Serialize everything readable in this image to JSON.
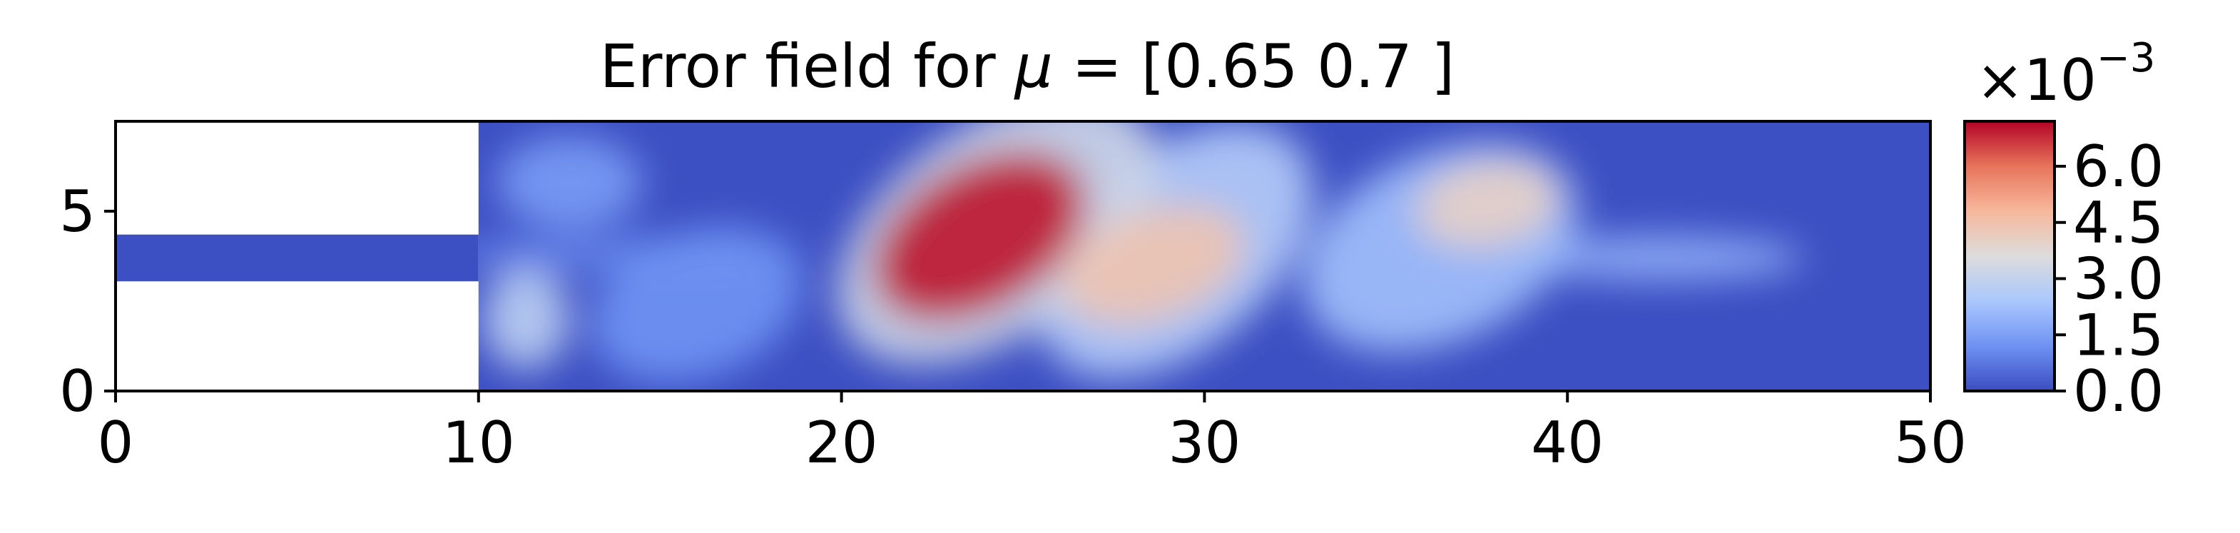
{
  "chart_data": {
    "type": "heatmap",
    "title_prefix": "Error field for ",
    "title_mu": "μ",
    "title_suffix": " = [0.65 0.7 ]",
    "xlabel": "",
    "ylabel": "",
    "xlim": [
      0,
      50
    ],
    "ylim": [
      0,
      7.5
    ],
    "x_ticks": [
      0,
      10,
      20,
      30,
      40,
      50
    ],
    "x_tick_labels": [
      "0",
      "10",
      "20",
      "30",
      "40",
      "50"
    ],
    "y_ticks": [
      0,
      5
    ],
    "y_tick_labels": [
      "0",
      "5"
    ],
    "grid": false,
    "colormap": "coolwarm",
    "colormap_colors": [
      "#3b4cc0",
      "#6f92f3",
      "#aac7fd",
      "#dddcdc",
      "#f7b89c",
      "#e7745b",
      "#b40426"
    ],
    "background_color": "#3d50c3",
    "colorbar": {
      "min": 0.0,
      "max": 0.0072,
      "ticks": [
        0.0,
        1.5,
        3.0,
        4.5,
        6.0
      ],
      "tick_labels": [
        "0.0",
        "1.5",
        "3.0",
        "4.5",
        "6.0"
      ],
      "multiplier_base": "×10",
      "multiplier_exp": "−3"
    },
    "domain": {
      "inlet_channel": {
        "x": [
          0,
          10
        ],
        "y": [
          3.05,
          4.35
        ]
      },
      "main_chamber": {
        "x": [
          10,
          50
        ],
        "y": [
          0,
          7.5
        ]
      }
    },
    "error_blobs": [
      {
        "x": 23.8,
        "y": 4.3,
        "rx": 3.2,
        "ry": 2.0,
        "rotate": -30,
        "value": 7.0
      },
      {
        "x": 24.3,
        "y": 4.5,
        "rx": 5.0,
        "ry": 2.9,
        "rotate": -35,
        "value": 3.2
      },
      {
        "x": 28.6,
        "y": 3.5,
        "rx": 2.6,
        "ry": 1.5,
        "rotate": -20,
        "value": 4.4
      },
      {
        "x": 29.2,
        "y": 3.9,
        "rx": 4.4,
        "ry": 2.7,
        "rotate": -40,
        "value": 2.6
      },
      {
        "x": 37.8,
        "y": 5.2,
        "rx": 2.0,
        "ry": 1.2,
        "rotate": -10,
        "value": 4.0
      },
      {
        "x": 36.5,
        "y": 4.0,
        "rx": 4.0,
        "ry": 2.6,
        "rotate": -25,
        "value": 2.2
      },
      {
        "x": 11.3,
        "y": 2.0,
        "rx": 1.2,
        "ry": 1.4,
        "rotate": 0,
        "value": 2.8
      },
      {
        "x": 42.5,
        "y": 3.7,
        "rx": 4.0,
        "ry": 0.6,
        "rotate": 0,
        "value": 1.9
      },
      {
        "x": 12.5,
        "y": 5.8,
        "rx": 2.0,
        "ry": 1.3,
        "rotate": 0,
        "value": 1.4
      },
      {
        "x": 16.0,
        "y": 2.4,
        "rx": 3.0,
        "ry": 2.0,
        "rotate": -20,
        "value": 1.2
      },
      {
        "x": 14.0,
        "y": 3.8,
        "rx": 5.0,
        "ry": 0.5,
        "rotate": 0,
        "value": 1.0
      }
    ]
  }
}
